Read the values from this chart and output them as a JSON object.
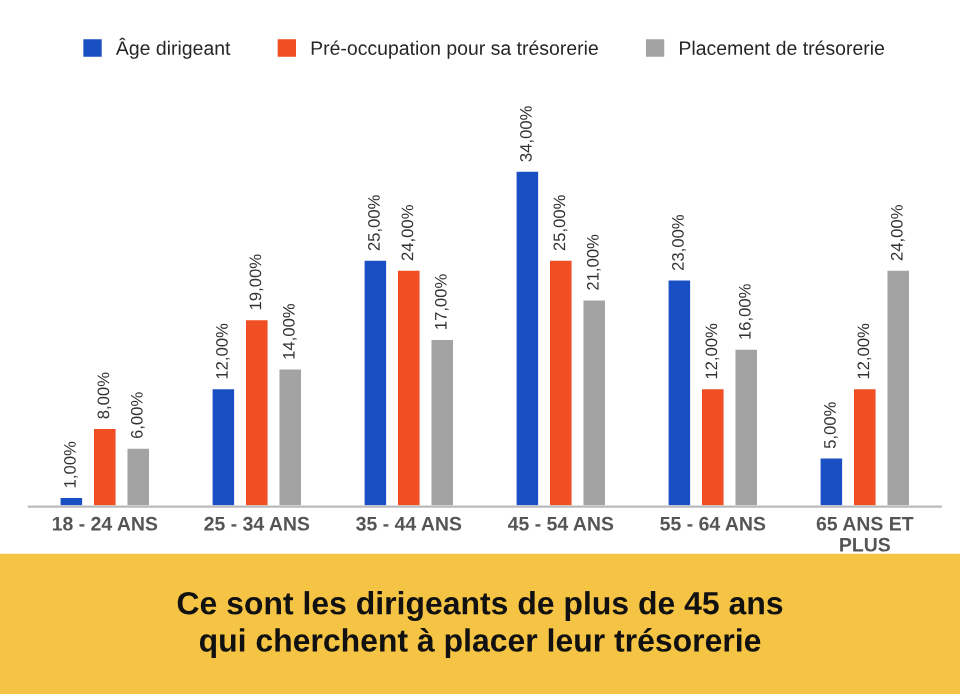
{
  "chart_data": {
    "type": "bar",
    "categories": [
      "18 - 24 ANS",
      "25 - 34 ANS",
      "35 - 44 ANS",
      "45 - 54 ANS",
      "55 - 64 ANS",
      "65 ANS ET\nPLUS"
    ],
    "series": [
      {
        "name": "Âge dirigeant",
        "color": "#1a4fc4",
        "values": [
          1,
          12,
          25,
          34,
          23,
          5
        ],
        "value_labels": [
          "1,00%",
          "12,00%",
          "25,00%",
          "34,00%",
          "23,00%",
          "5,00%"
        ]
      },
      {
        "name": "Pré-occupation pour sa trésorerie",
        "color": "#f04e23",
        "values": [
          8,
          19,
          24,
          25,
          12,
          12
        ],
        "value_labels": [
          "8,00%",
          "19,00%",
          "24,00%",
          "25,00%",
          "12,00%",
          "12,00%"
        ]
      },
      {
        "name": "Placement de trésorerie",
        "color": "#a3a3a3",
        "values": [
          6,
          14,
          17,
          21,
          16,
          24
        ],
        "value_labels": [
          "6,00%",
          "14,00%",
          "17,00%",
          "21,00%",
          "16,00%",
          "24,00%"
        ]
      }
    ],
    "legend": "top",
    "grid": false,
    "tick_labels": "x",
    "annotations": [
      "Ce sont les dirigeants de plus de 45 ans\nqui cherchent à placer leur trésorerie"
    ]
  }
}
